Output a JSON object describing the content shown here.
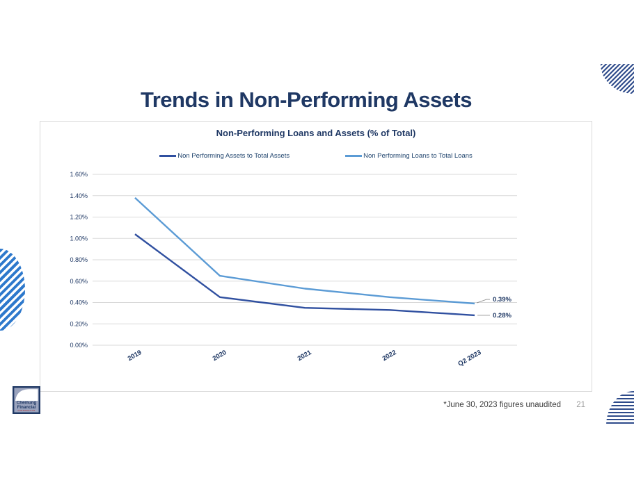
{
  "slide": {
    "title": "Trends in Non-Performing Assets",
    "footnote": "*June 30, 2023 figures unaudited",
    "page_number": "21",
    "logo": {
      "line1": "Chemung",
      "line2": "Financial",
      "line3": "CORPORATION"
    }
  },
  "colors": {
    "title_navy": "#1f3864",
    "series_dark": "#3050a0",
    "series_light": "#5b9bd5",
    "gridline": "#d9d9d9",
    "frame_border": "#d9d9d9",
    "leader": "#909090",
    "deco_navy": "#2d4a8a",
    "deco_blue": "#2e79cc"
  },
  "chart_data": {
    "type": "line",
    "title": "Non-Performing Loans and Assets (% of Total)",
    "categories": [
      "2019",
      "2020",
      "2021",
      "2022",
      "Q2 2023"
    ],
    "series": [
      {
        "name": "Non Performing Assets to Total Assets",
        "color": "#3050a0",
        "values": [
          1.04,
          0.45,
          0.35,
          0.33,
          0.28
        ],
        "end_label": "0.28%"
      },
      {
        "name": "Non Performing Loans to Total Loans",
        "color": "#5b9bd5",
        "values": [
          1.38,
          0.65,
          0.53,
          0.45,
          0.39
        ],
        "end_label": "0.39%"
      }
    ],
    "ylim": [
      0,
      1.6
    ],
    "ytick_step": 0.2,
    "ytick_labels": [
      "0.00%",
      "0.20%",
      "0.40%",
      "0.60%",
      "0.80%",
      "1.00%",
      "1.20%",
      "1.40%",
      "1.60%"
    ],
    "xlabel": "",
    "ylabel": "",
    "grid": true,
    "legend_position": "top",
    "x_label_rotation_deg": -30
  }
}
